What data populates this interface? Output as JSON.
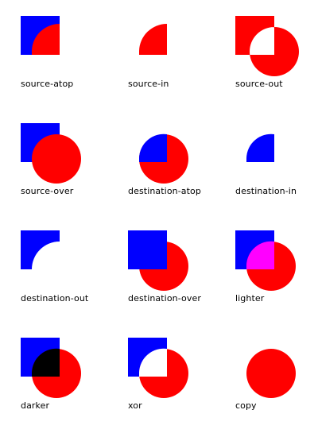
{
  "colors": {
    "square": "#0000ff",
    "circle": "#ff0000",
    "lighter_overlap": "#ff00ff",
    "darker_overlap": "#000000",
    "background": "#ffffff"
  },
  "operations": [
    {
      "key": "source-atop",
      "label": "source-atop"
    },
    {
      "key": "source-in",
      "label": "source-in"
    },
    {
      "key": "source-out",
      "label": "source-out"
    },
    {
      "key": "source-over",
      "label": "source-over"
    },
    {
      "key": "destination-atop",
      "label": "destination-atop"
    },
    {
      "key": "destination-in",
      "label": "destination-in"
    },
    {
      "key": "destination-out",
      "label": "destination-out"
    },
    {
      "key": "destination-over",
      "label": "destination-over"
    },
    {
      "key": "lighter",
      "label": "lighter"
    },
    {
      "key": "darker",
      "label": "darker"
    },
    {
      "key": "xor",
      "label": "xor"
    },
    {
      "key": "copy",
      "label": "copy"
    }
  ]
}
